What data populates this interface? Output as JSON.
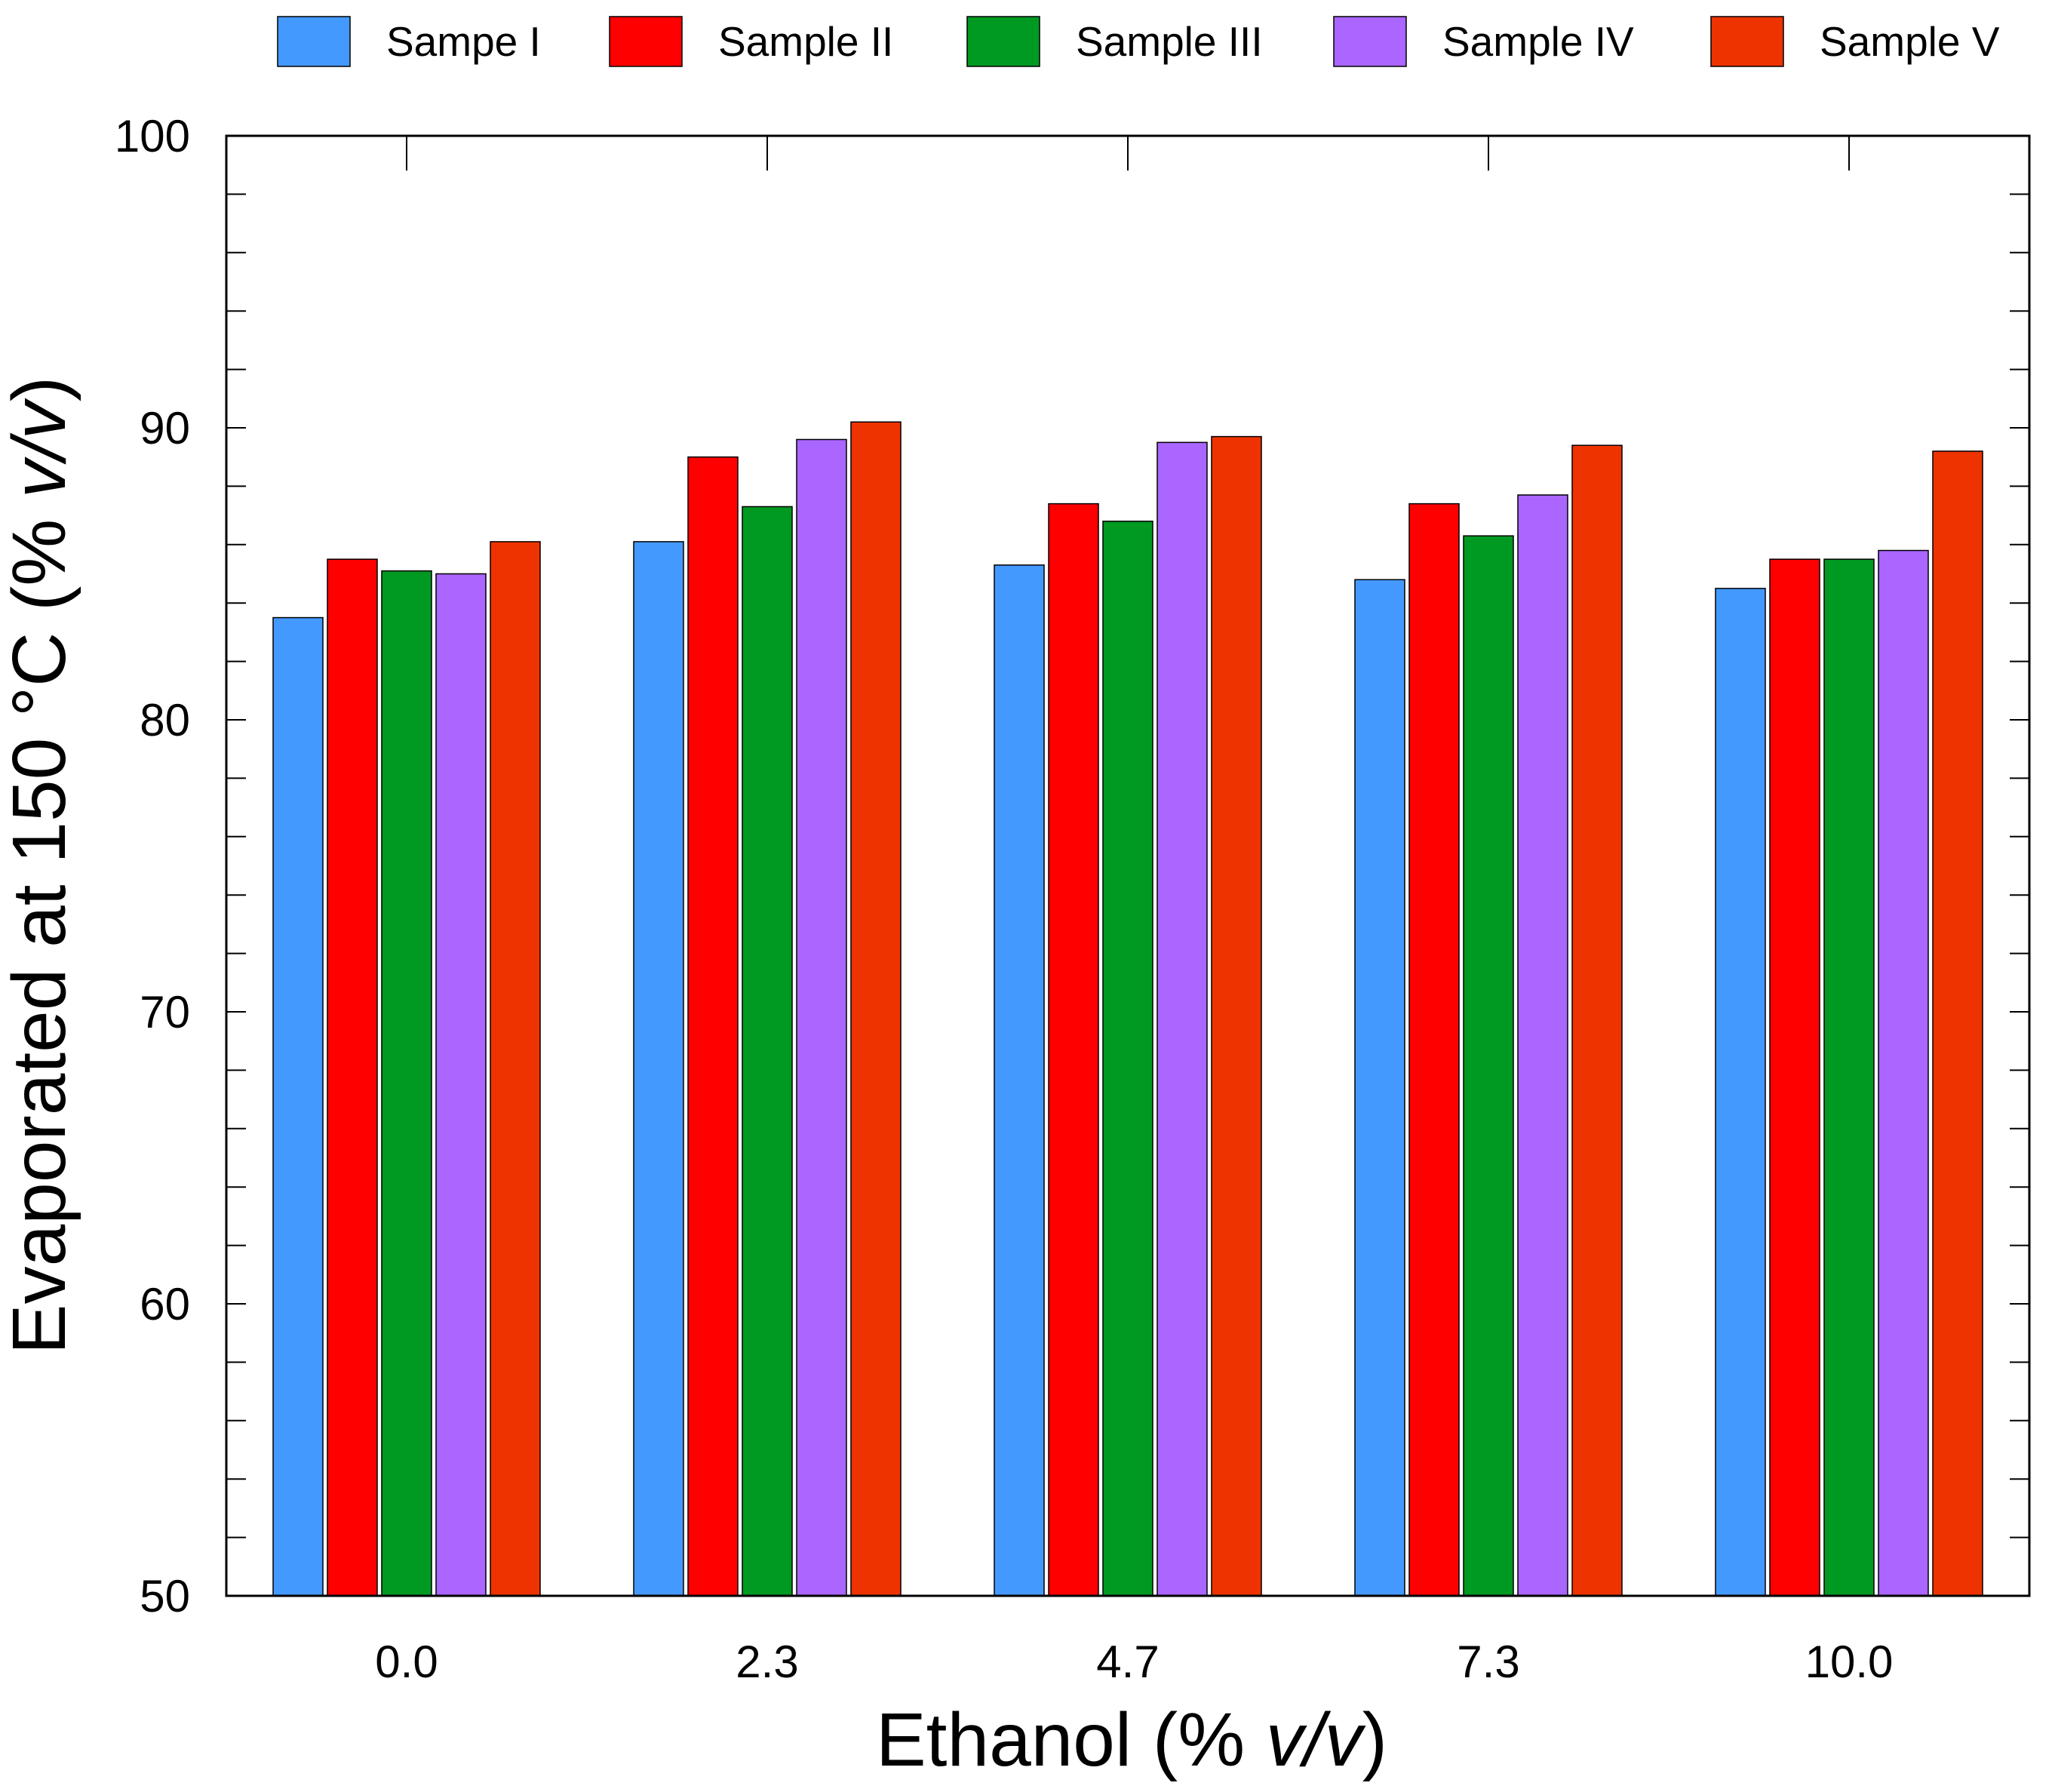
{
  "chart_data": {
    "type": "bar",
    "title": "",
    "xlabel": "Ethanol (% v/v)",
    "xlabel_parts": {
      "prefix": "Ethanol (% ",
      "italic": "v/v",
      "suffix": ")"
    },
    "ylabel": "Evaporated at 150 °C (% v/v)",
    "ylabel_parts": {
      "prefix": "Evaporated at 150 °C (% ",
      "italic": "v/v",
      "suffix": ")"
    },
    "categories": [
      "0.0",
      "2.3",
      "4.7",
      "7.3",
      "10.0"
    ],
    "ylim": [
      50,
      100
    ],
    "yticks": [
      "50",
      "60",
      "70",
      "80",
      "90",
      "100"
    ],
    "legend_position": "top",
    "series": [
      {
        "name": "Sampe I",
        "color": "#4499FF",
        "values": [
          83.5,
          86.1,
          85.3,
          84.8,
          84.5
        ]
      },
      {
        "name": "Sample II",
        "color": "#FF0000",
        "values": [
          85.5,
          89.0,
          87.4,
          87.4,
          85.5
        ]
      },
      {
        "name": "Sample III",
        "color": "#009922",
        "values": [
          85.1,
          87.3,
          86.8,
          86.3,
          85.5
        ]
      },
      {
        "name": "Sample IV",
        "color": "#AA66FF",
        "values": [
          85.0,
          89.6,
          89.5,
          87.7,
          85.8
        ]
      },
      {
        "name": "Sample V",
        "color": "#EE3300",
        "values": [
          86.1,
          90.2,
          89.7,
          89.4,
          89.2
        ]
      }
    ]
  }
}
